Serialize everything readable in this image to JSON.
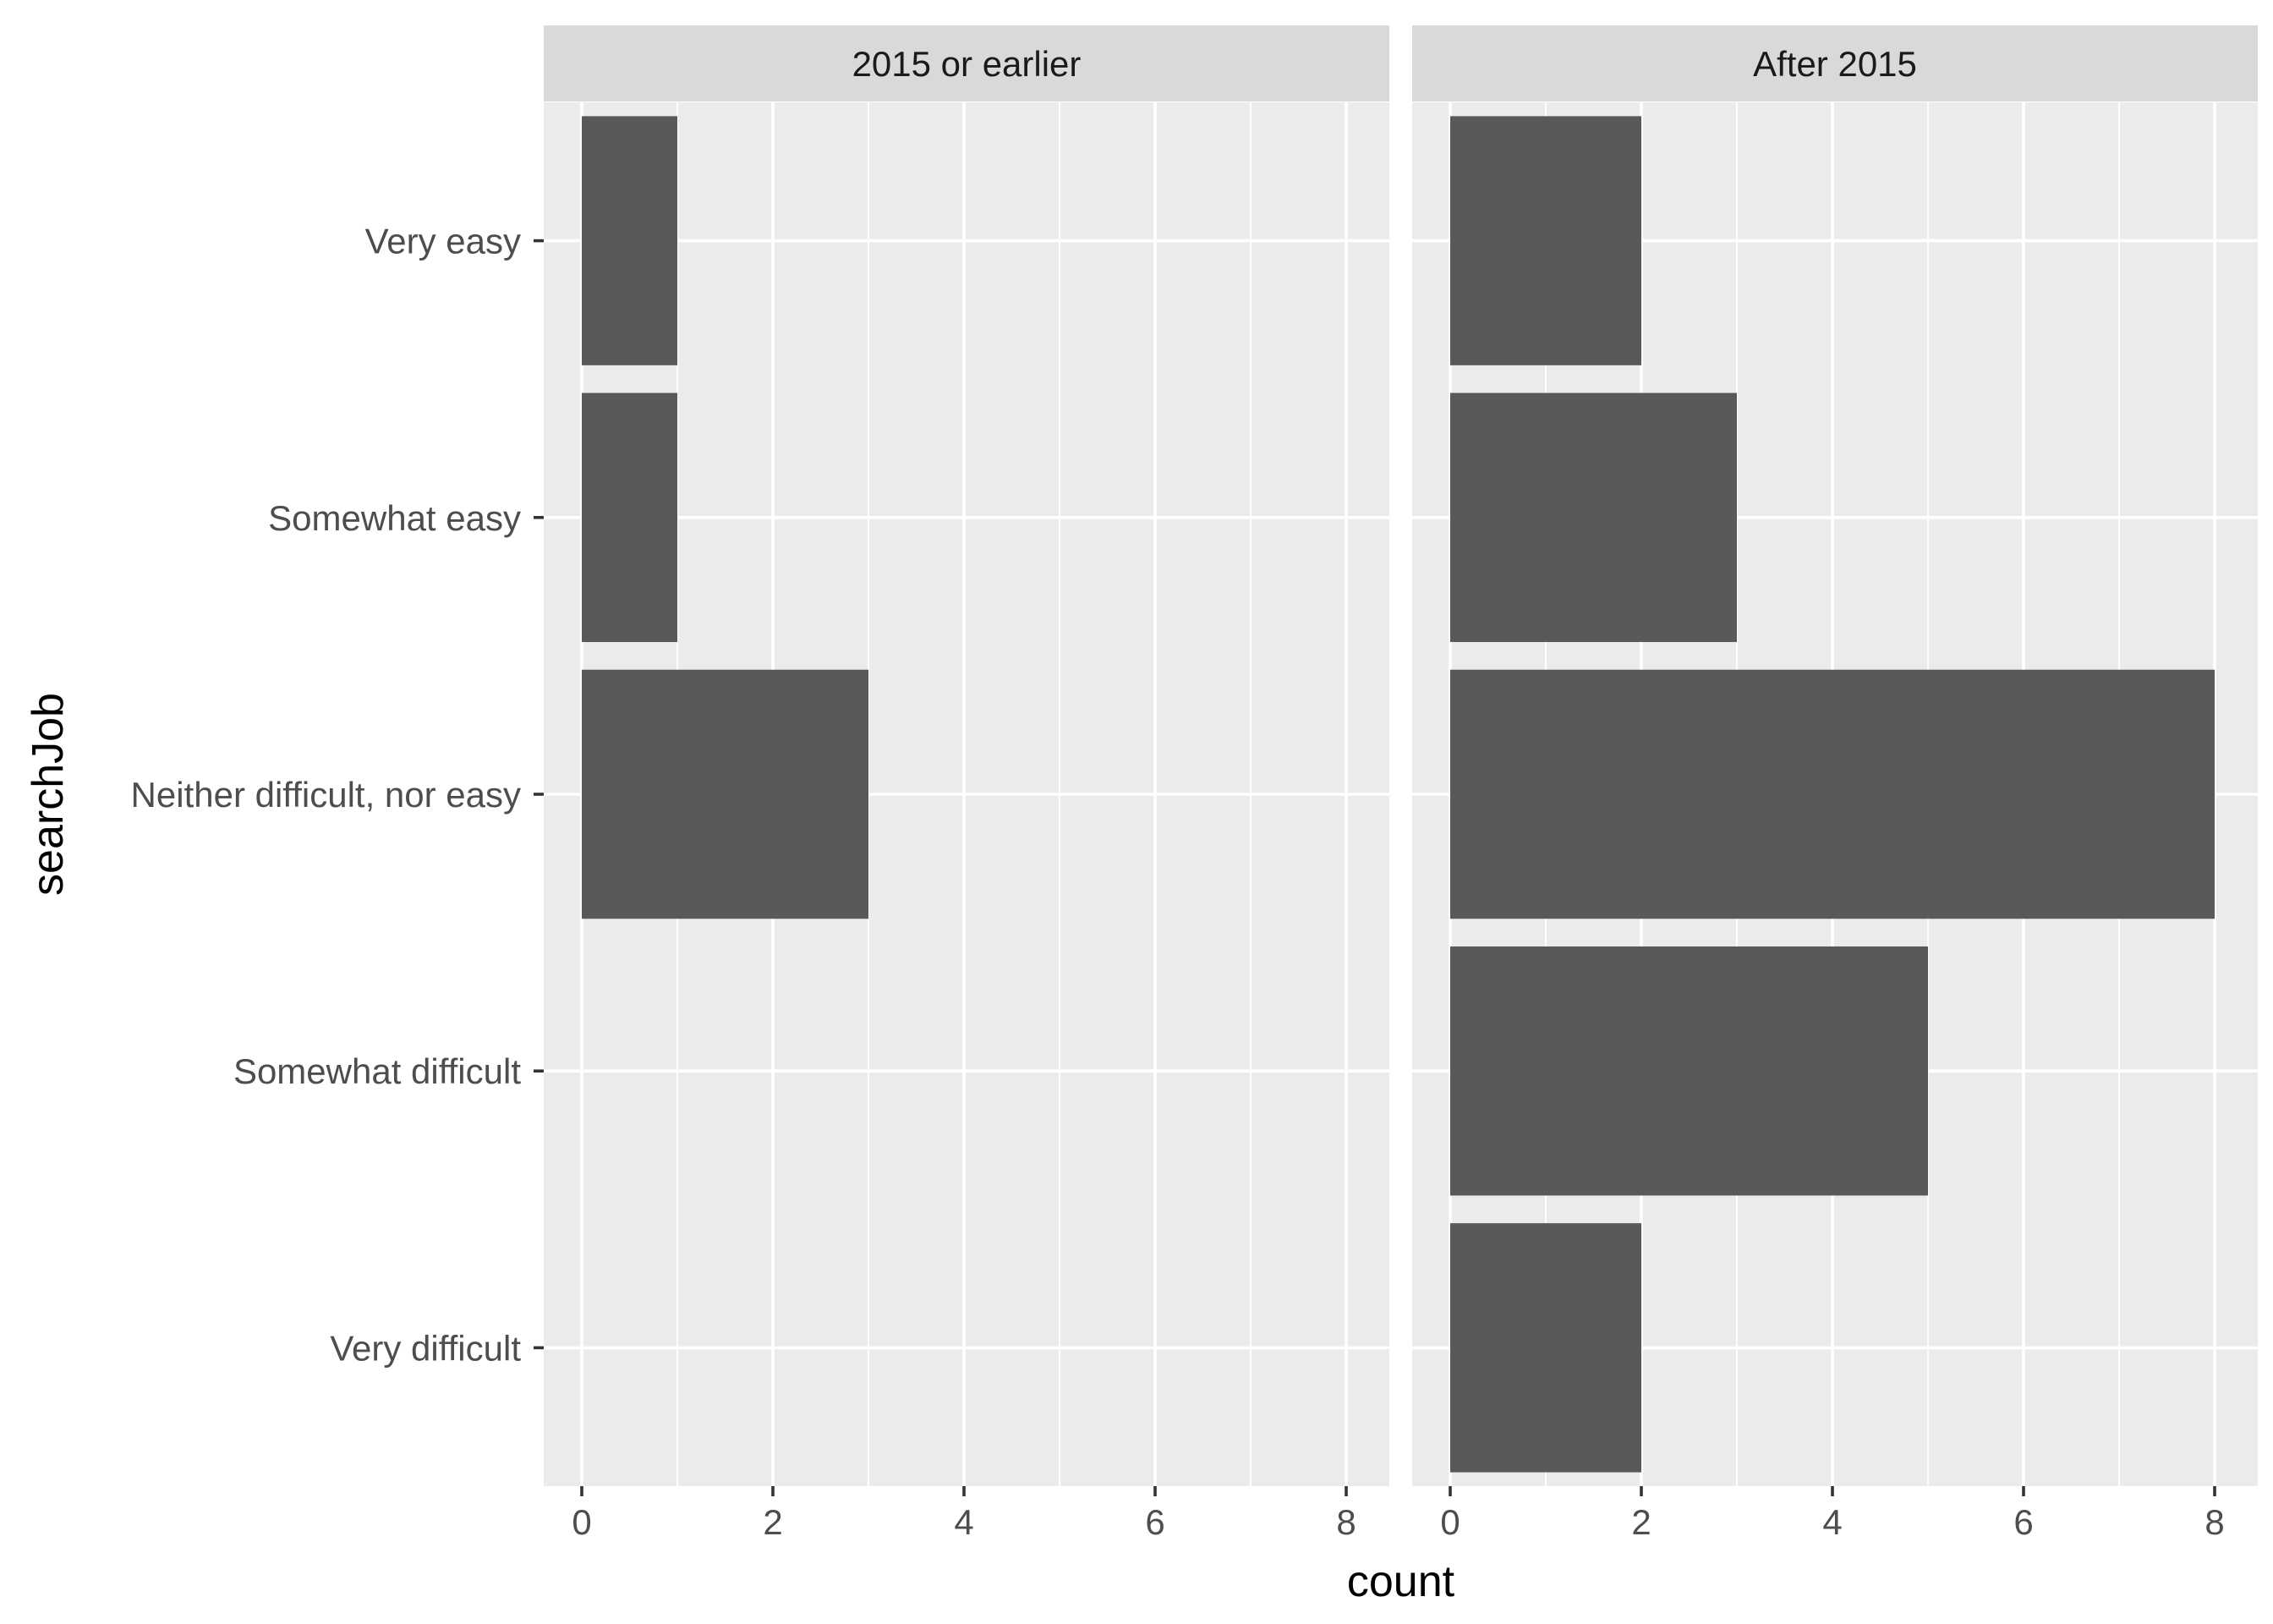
{
  "chart_data": {
    "type": "bar",
    "orientation": "horizontal",
    "facet_by": "period",
    "xlabel": "count",
    "ylabel": "searchJob",
    "xlim": [
      0,
      8
    ],
    "x_ticks": [
      0,
      2,
      4,
      6,
      8
    ],
    "x_tick_labels": [
      "0",
      "2",
      "4",
      "6",
      "8"
    ],
    "categories": [
      "Very easy",
      "Somewhat easy",
      "Neither difficult, nor easy",
      "Somewhat difficult",
      "Very difficult"
    ],
    "grid": true,
    "colors": {
      "bar": "#595959",
      "panel_background": "#EBEBEB",
      "strip_background": "#D9D9D9",
      "grid": "#FFFFFF"
    },
    "panels": [
      {
        "strip_label": "2015 or earlier",
        "values": [
          1,
          1,
          3,
          0,
          0
        ]
      },
      {
        "strip_label": "After 2015",
        "values": [
          2,
          3,
          8,
          5,
          2
        ]
      }
    ]
  }
}
